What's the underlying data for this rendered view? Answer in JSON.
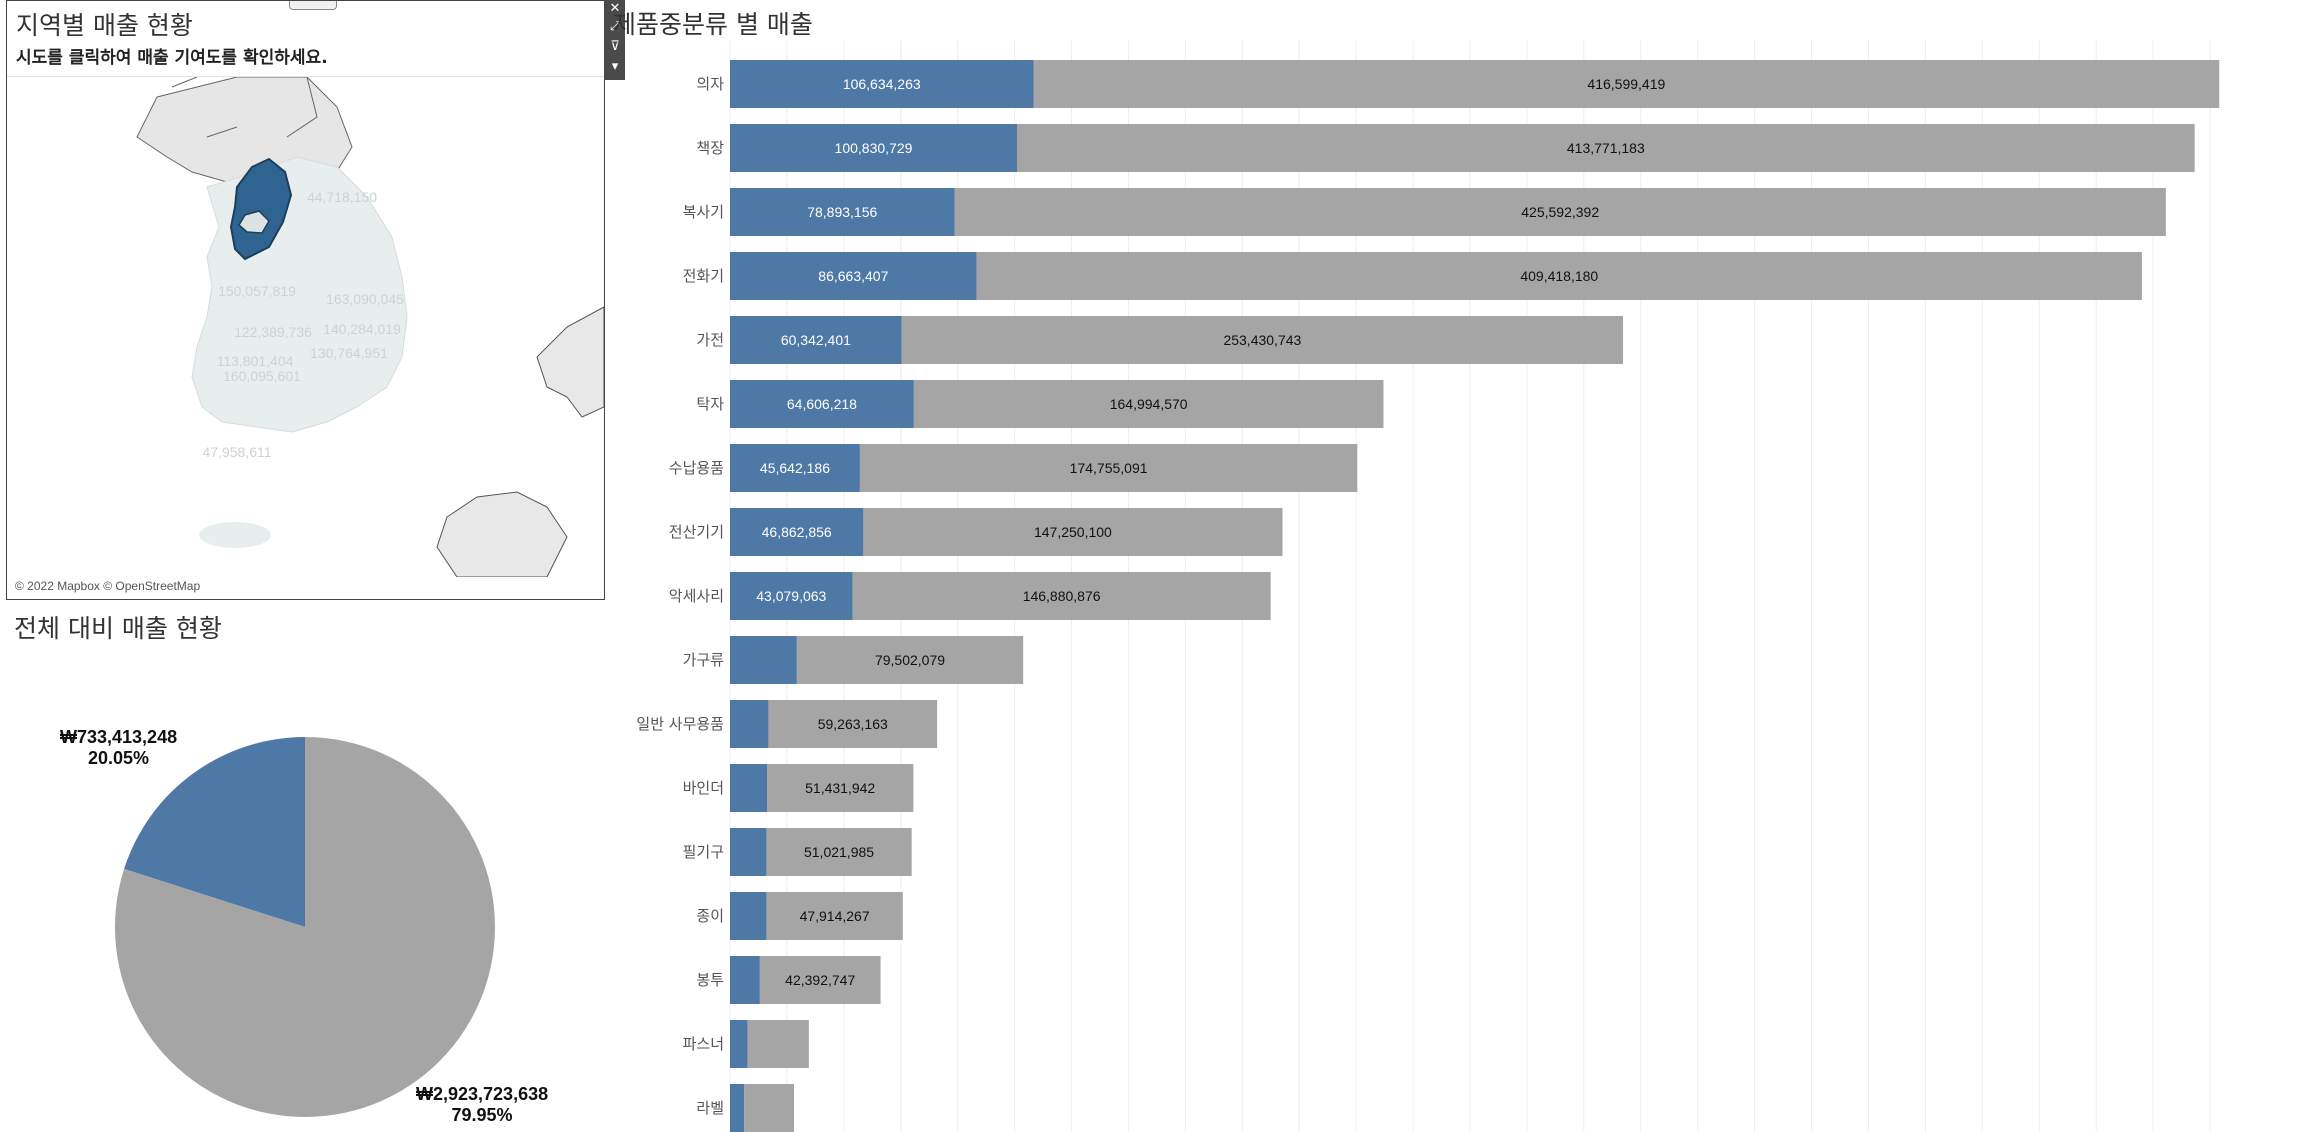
{
  "map_panel": {
    "title": "지역별 매출 현황",
    "subtitle": "시도를 클릭하여 매출 기여도를 확인하세요.",
    "attribution": "© 2022 Mapbox © OpenStreetMap",
    "region_labels": [
      "44,718,150",
      "150,057,819",
      "163,090,045",
      "122,389,736",
      "140,284,019",
      "113,801,404",
      "130,764,951",
      "160,095,601",
      "47,958,611"
    ]
  },
  "toolbar": {
    "icons": [
      "close-icon",
      "expand-icon",
      "filter-icon",
      "more-icon"
    ]
  },
  "colors": {
    "highlight": "#4e79a7",
    "rest": "#a5a5a5",
    "map_selected": "#2f6390",
    "map_land": "#e7ecec",
    "map_other": "#e8e8e8"
  },
  "chart_data": [
    {
      "type": "bar",
      "orientation": "horizontal",
      "stacked": true,
      "title": "제품중분류 별 매출",
      "categories": [
        "의자",
        "책장",
        "복사기",
        "전화기",
        "가전",
        "탁자",
        "수납용품",
        "전산기기",
        "악세사리",
        "가구류",
        "일반 사무용품",
        "바인더",
        "필기구",
        "종이",
        "봉투",
        "파스너",
        "라벨"
      ],
      "series": [
        {
          "values": [
            106634263,
            100830729,
            78893156,
            86663407,
            60342401,
            64606218,
            45642186,
            46862856,
            43079063,
            23500000,
            13500000,
            13000000,
            12800000,
            12800000,
            10500000,
            6200000,
            5000000
          ],
          "labels": [
            "106,634,263",
            "100,830,729",
            "78,893,156",
            "86,663,407",
            "60,342,401",
            "64,606,218",
            "45,642,186",
            "46,862,856",
            "43,079,063",
            "",
            "",
            "",
            "",
            "",
            "",
            "",
            ""
          ]
        },
        {
          "values": [
            416599419,
            413771183,
            425592392,
            409418180,
            253430743,
            164994570,
            174755091,
            147250100,
            146880876,
            79502079,
            59263163,
            51431942,
            51021985,
            47914267,
            42392747,
            21500000,
            17500000
          ],
          "labels": [
            "416,599,419",
            "413,771,183",
            "425,592,392",
            "409,418,180",
            "253,430,743",
            "164,994,570",
            "174,755,091",
            "147,250,100",
            "146,880,876",
            "79,502,079",
            "59,263,163",
            "51,431,942",
            "51,021,985",
            "47,914,267",
            "42,392,747",
            "",
            ""
          ]
        }
      ],
      "grid": true,
      "legend": "none"
    },
    {
      "type": "pie",
      "title": "전체 대비 매출 현황",
      "slices": [
        {
          "value": 733413248,
          "percent": 20.05,
          "value_label": "₩733,413,248",
          "percent_label": "20.05%"
        },
        {
          "value": 2923723638,
          "percent": 79.95,
          "value_label": "₩2,923,723,638",
          "percent_label": "79.95%"
        }
      ]
    }
  ]
}
